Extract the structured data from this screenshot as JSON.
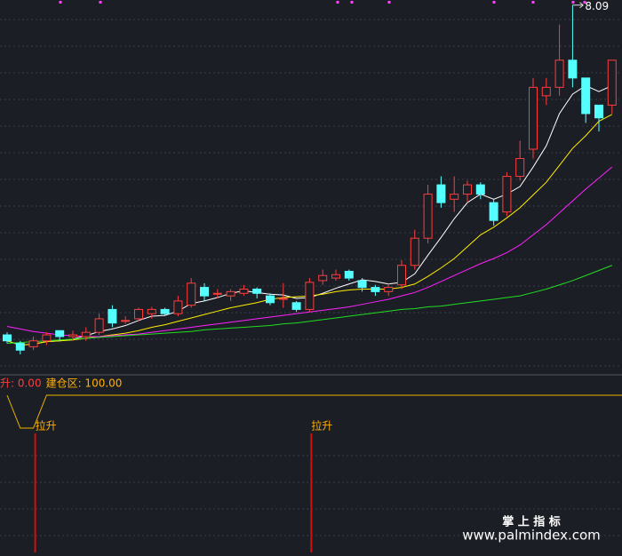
{
  "chart_data": [
    {
      "type": "candlestick",
      "ylim": [
        3.75,
        8.15
      ],
      "up_color": "#ff3c3c",
      "down_color": "#54ffff",
      "max_label": "8.09",
      "open": [
        4.2,
        4.1,
        4.06,
        4.13,
        4.25,
        4.18,
        4.18,
        4.23,
        4.5,
        4.36,
        4.39,
        4.45,
        4.5,
        4.45,
        4.55,
        4.76,
        4.68,
        4.66,
        4.69,
        4.74,
        4.66,
        4.62,
        4.58,
        4.5,
        4.84,
        4.87,
        4.95,
        4.84,
        4.76,
        4.71,
        4.79,
        5.02,
        5.34,
        5.97,
        5.8,
        5.86,
        5.97,
        5.76,
        5.65,
        6.07,
        6.39,
        7.02,
        7.12,
        7.44,
        7.23,
        6.91,
        6.91
      ],
      "close": [
        4.13,
        4.02,
        4.13,
        4.2,
        4.18,
        4.2,
        4.23,
        4.39,
        4.34,
        4.37,
        4.5,
        4.5,
        4.45,
        4.6,
        4.81,
        4.66,
        4.69,
        4.71,
        4.74,
        4.69,
        4.58,
        4.63,
        4.5,
        4.82,
        4.9,
        4.91,
        4.87,
        4.76,
        4.71,
        4.76,
        5.02,
        5.34,
        5.86,
        5.76,
        5.86,
        5.97,
        5.86,
        5.55,
        6.07,
        6.28,
        7.12,
        7.12,
        7.44,
        7.23,
        6.81,
        6.76,
        7.44
      ],
      "high": [
        4.23,
        4.13,
        4.18,
        4.23,
        4.25,
        4.25,
        4.29,
        4.45,
        4.55,
        4.42,
        4.52,
        4.53,
        4.52,
        4.66,
        4.87,
        4.81,
        4.74,
        4.74,
        4.79,
        4.76,
        4.69,
        4.81,
        4.6,
        4.87,
        4.97,
        4.97,
        4.97,
        4.87,
        4.79,
        4.81,
        5.08,
        5.44,
        5.97,
        6.07,
        6.07,
        6.02,
        6.0,
        5.8,
        6.12,
        6.49,
        7.23,
        7.23,
        7.86,
        8.09,
        7.23,
        6.91,
        7.44
      ],
      "low": [
        4.1,
        3.97,
        4.02,
        4.08,
        4.13,
        4.13,
        4.13,
        4.2,
        4.29,
        4.33,
        4.36,
        4.39,
        4.42,
        4.42,
        4.52,
        4.6,
        4.63,
        4.6,
        4.66,
        4.63,
        4.55,
        4.52,
        4.47,
        4.47,
        4.79,
        4.84,
        4.84,
        4.71,
        4.66,
        4.66,
        4.74,
        4.97,
        5.28,
        5.7,
        5.65,
        5.76,
        5.8,
        5.49,
        5.6,
        6.02,
        6.28,
        6.91,
        7.02,
        7.12,
        6.7,
        6.6,
        6.81
      ],
      "ma_lines": [
        {
          "color": "#ffffff",
          "values": [
            4.13,
            4.08,
            4.09,
            4.12,
            4.13,
            4.15,
            4.19,
            4.24,
            4.27,
            4.31,
            4.37,
            4.42,
            4.43,
            4.48,
            4.57,
            4.6,
            4.64,
            4.69,
            4.72,
            4.7,
            4.68,
            4.67,
            4.63,
            4.64,
            4.69,
            4.75,
            4.8,
            4.85,
            4.83,
            4.8,
            4.82,
            4.92,
            5.14,
            5.35,
            5.57,
            5.76,
            5.86,
            5.8,
            5.86,
            5.95,
            6.18,
            6.43,
            6.81,
            7.04,
            7.14,
            7.07,
            7.14
          ]
        },
        {
          "color": "#ffee00",
          "values": [
            4.13,
            4.08,
            4.09,
            4.12,
            4.13,
            4.14,
            4.16,
            4.18,
            4.2,
            4.22,
            4.25,
            4.29,
            4.32,
            4.36,
            4.4,
            4.44,
            4.48,
            4.52,
            4.55,
            4.58,
            4.62,
            4.64,
            4.65,
            4.66,
            4.68,
            4.71,
            4.73,
            4.74,
            4.74,
            4.74,
            4.76,
            4.8,
            4.89,
            4.99,
            5.1,
            5.24,
            5.38,
            5.47,
            5.58,
            5.7,
            5.85,
            6.0,
            6.2,
            6.4,
            6.55,
            6.72,
            6.8
          ]
        },
        {
          "color": "#ff22ff",
          "values": [
            4.3,
            4.27,
            4.24,
            4.22,
            4.2,
            4.19,
            4.18,
            4.18,
            4.19,
            4.2,
            4.21,
            4.23,
            4.25,
            4.27,
            4.29,
            4.31,
            4.33,
            4.35,
            4.37,
            4.39,
            4.41,
            4.43,
            4.45,
            4.47,
            4.49,
            4.51,
            4.53,
            4.56,
            4.59,
            4.62,
            4.66,
            4.7,
            4.76,
            4.83,
            4.9,
            4.97,
            5.04,
            5.1,
            5.17,
            5.26,
            5.38,
            5.5,
            5.64,
            5.78,
            5.92,
            6.05,
            6.18
          ]
        },
        {
          "color": "#22dd22",
          "values": [
            4.1,
            4.11,
            4.12,
            4.13,
            4.14,
            4.15,
            4.16,
            4.17,
            4.18,
            4.19,
            4.2,
            4.21,
            4.22,
            4.23,
            4.24,
            4.26,
            4.27,
            4.28,
            4.29,
            4.3,
            4.31,
            4.33,
            4.34,
            4.36,
            4.38,
            4.4,
            4.42,
            4.44,
            4.46,
            4.48,
            4.5,
            4.51,
            4.53,
            4.54,
            4.56,
            4.58,
            4.6,
            4.62,
            4.64,
            4.66,
            4.7,
            4.74,
            4.79,
            4.84,
            4.9,
            4.96,
            5.02
          ]
        }
      ]
    },
    {
      "type": "line",
      "ylim": [
        0,
        100
      ],
      "legend": [
        {
          "text": "升: 0.00",
          "color": "#ff3c3c"
        },
        {
          "text": "建仓区: 100.00",
          "color": "#ffb000"
        }
      ],
      "color": "#e8b400",
      "values": [
        100,
        0,
        0,
        100,
        100,
        100,
        100,
        100,
        100,
        100,
        100,
        100,
        100,
        100,
        100,
        100,
        100,
        100,
        100,
        100,
        100,
        100,
        100,
        100,
        100,
        100,
        100,
        100,
        100,
        100,
        100,
        100,
        100,
        100,
        100,
        100,
        100,
        100,
        100,
        100,
        100,
        100,
        100,
        100,
        100,
        100,
        100
      ],
      "signal_label": "拉升",
      "signal_color": "#d01010",
      "signal_indices": [
        2,
        23
      ]
    }
  ],
  "watermark": [
    "掌 上 指 标",
    "www.palmindex.com"
  ]
}
